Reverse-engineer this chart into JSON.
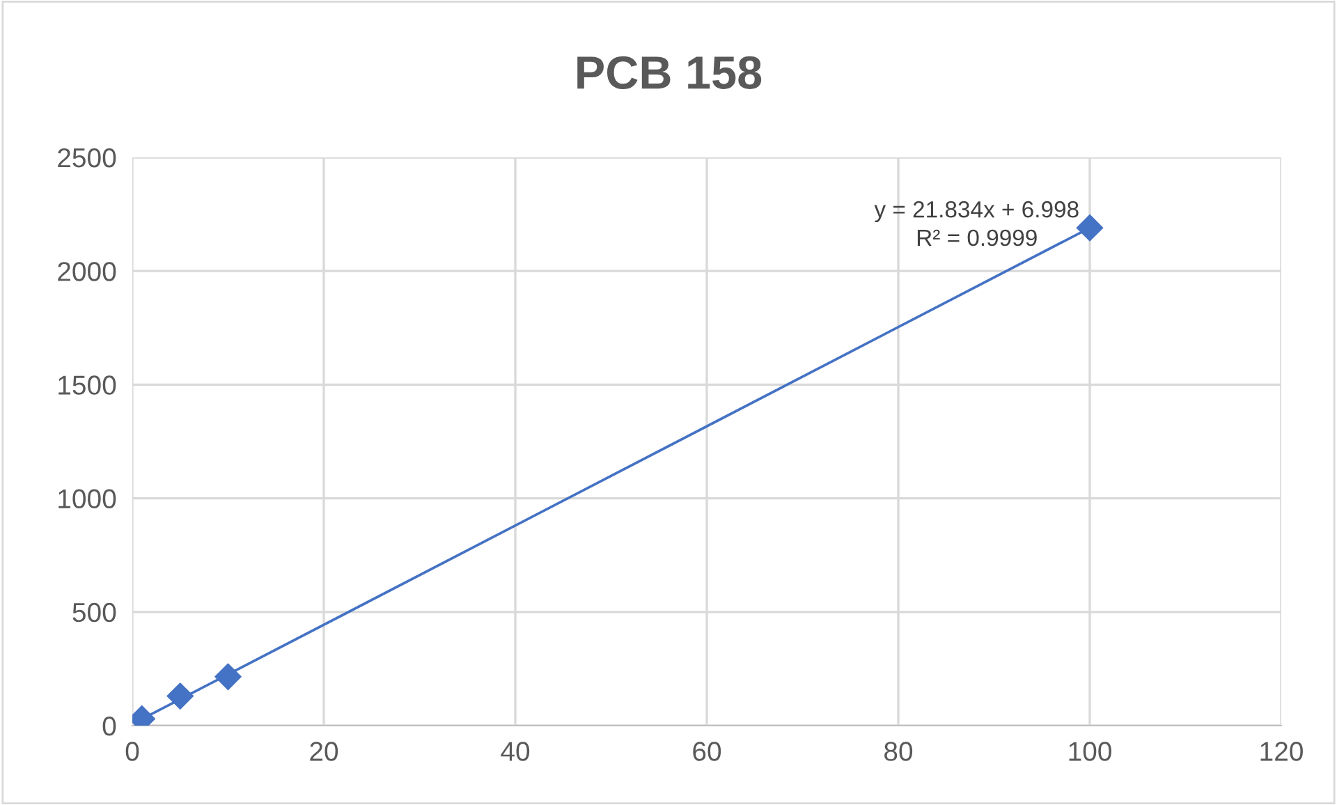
{
  "chart_data": {
    "type": "scatter",
    "title": "PCB 158",
    "series": [
      {
        "color": "#4472c4",
        "x": [
          1,
          5,
          10,
          100
        ],
        "values": [
          30,
          130,
          215,
          2190
        ],
        "marker": "diamond"
      },
      {
        "type": "line",
        "color": "#4472c4",
        "x": [
          1,
          100
        ],
        "values": [
          29,
          2190
        ],
        "marker": "none"
      }
    ],
    "annotations": [
      "y = 21.834x + 6.998",
      "R² = 0.9999"
    ],
    "xlim": [
      0,
      120
    ],
    "xticks": [
      0,
      20,
      40,
      60,
      80,
      100,
      120
    ],
    "ylim": [
      0,
      2500
    ],
    "yticks": [
      0,
      500,
      1000,
      1500,
      2000,
      2500
    ],
    "grid": true,
    "legend": false
  }
}
